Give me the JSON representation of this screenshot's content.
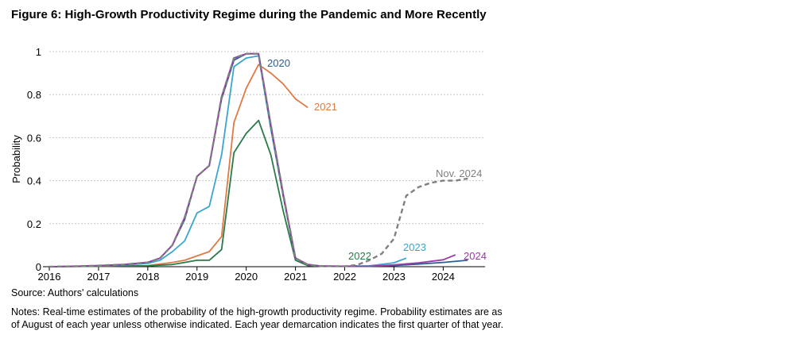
{
  "figure": {
    "title": "Figure 6: High-Growth Productivity Regime during the Pandemic and More Recently",
    "source": "Source: Authors' calculations",
    "notes": "Notes: Real-time estimates of the probability of the high-growth productivity regime. Probability estimates are as of August of each year unless otherwise indicated. Each year demarcation indicates the first quarter of that year."
  },
  "chart_data": {
    "type": "line",
    "title": "Figure 6: High-Growth Productivity Regime during the Pandemic and More Recently",
    "xlabel": "",
    "ylabel": "Probability",
    "xlim": [
      2016,
      2024.85
    ],
    "ylim": [
      0,
      1
    ],
    "x_ticks": [
      2016,
      2017,
      2018,
      2019,
      2020,
      2021,
      2022,
      2023,
      2024
    ],
    "y_ticks": [
      0,
      0.2,
      0.4,
      0.6,
      0.8,
      1
    ],
    "y_tick_labels": [
      "0",
      "0.2",
      "0.4",
      "0.6",
      "0.8",
      "1"
    ],
    "grid": "horizontal-dotted",
    "legend": "inline-labels",
    "series": [
      {
        "name": "2020",
        "color": "#2b5f8f",
        "x": [
          2016,
          2016.5,
          2017,
          2017.5,
          2018,
          2018.25,
          2018.5,
          2018.75,
          2019,
          2019.25,
          2019.5,
          2019.75,
          2020,
          2020.25,
          2020.5,
          2020.75,
          2021,
          2021.25,
          2021.5,
          2022,
          2022.5,
          2023,
          2023.5,
          2024,
          2024.5
        ],
        "y": [
          0,
          0.002,
          0.005,
          0.01,
          0.02,
          0.04,
          0.1,
          0.22,
          0.42,
          0.47,
          0.78,
          0.96,
          0.99,
          0.99,
          0.65,
          0.33,
          0.04,
          0.01,
          0.003,
          0.002,
          0.002,
          0.005,
          0.012,
          0.02,
          0.03
        ]
      },
      {
        "name": "2021",
        "color": "#e07a45",
        "x": [
          2016,
          2017,
          2018,
          2018.5,
          2018.75,
          2019,
          2019.25,
          2019.5,
          2019.75,
          2020,
          2020.25,
          2020.5,
          2020.75,
          2021,
          2021.25
        ],
        "y": [
          0,
          0.002,
          0.005,
          0.02,
          0.03,
          0.05,
          0.07,
          0.14,
          0.67,
          0.83,
          0.94,
          0.9,
          0.85,
          0.78,
          0.74
        ]
      },
      {
        "name": "2022",
        "color": "#2a7a4a",
        "x": [
          2016,
          2017,
          2018,
          2018.5,
          2018.75,
          2019,
          2019.25,
          2019.5,
          2019.75,
          2020,
          2020.25,
          2020.5,
          2020.75,
          2021,
          2021.25,
          2021.5,
          2022,
          2022.25
        ],
        "y": [
          0,
          0.002,
          0.004,
          0.01,
          0.02,
          0.03,
          0.03,
          0.08,
          0.53,
          0.62,
          0.68,
          0.52,
          0.26,
          0.03,
          0.005,
          0.002,
          0.002,
          0.004
        ]
      },
      {
        "name": "2023",
        "color": "#3aa6cf",
        "x": [
          2016,
          2016.5,
          2017,
          2017.5,
          2018,
          2018.25,
          2018.5,
          2018.75,
          2019,
          2019.25,
          2019.5,
          2019.75,
          2020,
          2020.25,
          2020.5,
          2020.75,
          2021,
          2021.25,
          2021.5,
          2022,
          2022.5,
          2023,
          2023.25
        ],
        "y": [
          0,
          0.002,
          0.004,
          0.008,
          0.015,
          0.03,
          0.07,
          0.12,
          0.25,
          0.28,
          0.52,
          0.93,
          0.97,
          0.98,
          0.64,
          0.33,
          0.04,
          0.01,
          0.003,
          0.002,
          0.004,
          0.018,
          0.04
        ]
      },
      {
        "name": "2024",
        "color": "#9b3aa6",
        "x": [
          2016,
          2016.5,
          2017,
          2017.5,
          2018,
          2018.25,
          2018.5,
          2018.75,
          2019,
          2019.25,
          2019.5,
          2019.75,
          2020,
          2020.25,
          2020.5,
          2020.75,
          2021,
          2021.25,
          2021.5,
          2022,
          2022.5,
          2023,
          2023.5,
          2024,
          2024.25
        ],
        "y": [
          0,
          0.002,
          0.005,
          0.01,
          0.02,
          0.04,
          0.1,
          0.23,
          0.42,
          0.47,
          0.79,
          0.97,
          0.99,
          0.99,
          0.66,
          0.34,
          0.04,
          0.01,
          0.003,
          0.002,
          0.002,
          0.008,
          0.018,
          0.032,
          0.055
        ]
      },
      {
        "name": "Nov. 2024",
        "color": "#808080",
        "dashed": true,
        "x": [
          2016,
          2016.5,
          2017,
          2017.5,
          2018,
          2018.25,
          2018.5,
          2018.75,
          2019,
          2019.25,
          2019.5,
          2019.75,
          2020,
          2020.25,
          2020.5,
          2020.75,
          2021,
          2021.25,
          2021.5,
          2022,
          2022.25,
          2022.5,
          2022.75,
          2023,
          2023.25,
          2023.5,
          2023.75,
          2024,
          2024.25,
          2024.5
        ],
        "y": [
          0,
          0.002,
          0.005,
          0.01,
          0.02,
          0.04,
          0.1,
          0.23,
          0.42,
          0.47,
          0.79,
          0.97,
          0.99,
          0.99,
          0.66,
          0.34,
          0.04,
          0.01,
          0.003,
          0.002,
          0.008,
          0.03,
          0.06,
          0.13,
          0.33,
          0.37,
          0.39,
          0.4,
          0.4,
          0.41
        ]
      }
    ]
  }
}
